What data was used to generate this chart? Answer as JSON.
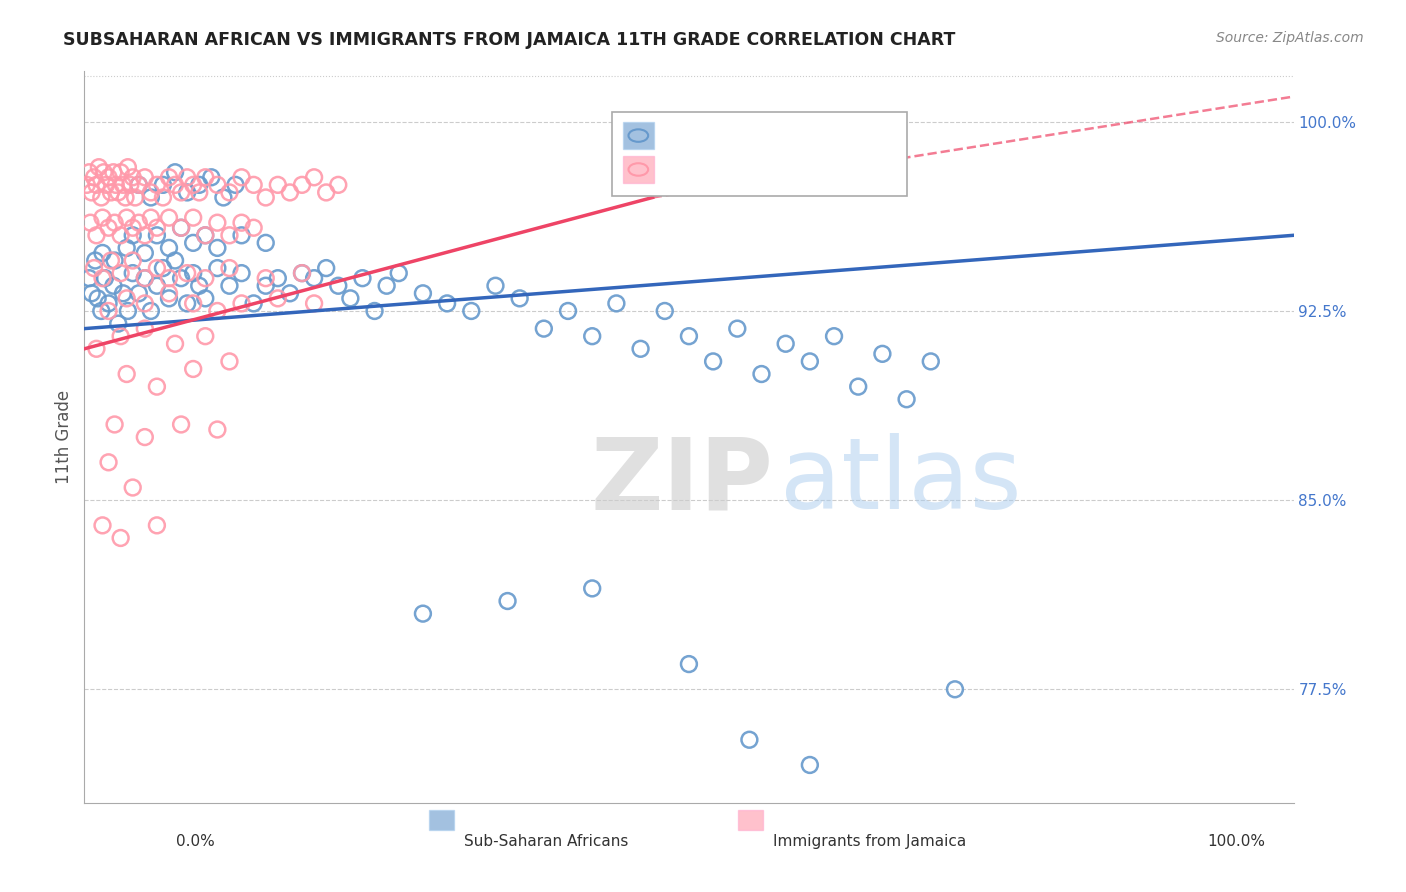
{
  "title": "SUBSAHARAN AFRICAN VS IMMIGRANTS FROM JAMAICA 11TH GRADE CORRELATION CHART",
  "source": "Source: ZipAtlas.com",
  "ylabel": "11th Grade",
  "xlim": [
    0.0,
    100.0
  ],
  "ylim": [
    73.0,
    102.0
  ],
  "yticks": [
    77.5,
    85.0,
    92.5,
    100.0
  ],
  "ytick_labels": [
    "77.5%",
    "85.0%",
    "92.5%",
    "100.0%"
  ],
  "blue_color": "#6699CC",
  "pink_color": "#FF99AA",
  "blue_line_color": "#3366BB",
  "pink_line_color": "#EE4466",
  "watermark_zip": "ZIP",
  "watermark_atlas": "atlas",
  "blue_scatter": [
    [
      0.4,
      93.8
    ],
    [
      0.6,
      93.2
    ],
    [
      0.9,
      94.5
    ],
    [
      1.1,
      93.0
    ],
    [
      1.4,
      92.5
    ],
    [
      1.7,
      93.8
    ],
    [
      2.0,
      92.8
    ],
    [
      2.4,
      93.5
    ],
    [
      2.8,
      92.0
    ],
    [
      3.2,
      93.2
    ],
    [
      3.6,
      92.5
    ],
    [
      4.0,
      94.0
    ],
    [
      4.5,
      93.2
    ],
    [
      5.0,
      93.8
    ],
    [
      5.5,
      92.5
    ],
    [
      6.0,
      93.5
    ],
    [
      6.5,
      94.2
    ],
    [
      7.0,
      93.0
    ],
    [
      7.5,
      94.5
    ],
    [
      8.0,
      93.8
    ],
    [
      8.5,
      92.8
    ],
    [
      9.0,
      94.0
    ],
    [
      9.5,
      93.5
    ],
    [
      10.0,
      93.0
    ],
    [
      11.0,
      94.2
    ],
    [
      12.0,
      93.5
    ],
    [
      13.0,
      94.0
    ],
    [
      14.0,
      92.8
    ],
    [
      15.0,
      93.5
    ],
    [
      16.0,
      93.8
    ],
    [
      17.0,
      93.2
    ],
    [
      18.0,
      94.0
    ],
    [
      19.0,
      93.8
    ],
    [
      20.0,
      94.2
    ],
    [
      21.0,
      93.5
    ],
    [
      22.0,
      93.0
    ],
    [
      23.0,
      93.8
    ],
    [
      24.0,
      92.5
    ],
    [
      25.0,
      93.5
    ],
    [
      26.0,
      94.0
    ],
    [
      28.0,
      93.2
    ],
    [
      30.0,
      92.8
    ],
    [
      32.0,
      92.5
    ],
    [
      34.0,
      93.5
    ],
    [
      36.0,
      93.0
    ],
    [
      38.0,
      91.8
    ],
    [
      40.0,
      92.5
    ],
    [
      42.0,
      91.5
    ],
    [
      44.0,
      92.8
    ],
    [
      46.0,
      91.0
    ],
    [
      48.0,
      92.5
    ],
    [
      50.0,
      91.5
    ],
    [
      52.0,
      90.5
    ],
    [
      54.0,
      91.8
    ],
    [
      56.0,
      90.0
    ],
    [
      58.0,
      91.2
    ],
    [
      60.0,
      90.5
    ],
    [
      62.0,
      91.5
    ],
    [
      64.0,
      89.5
    ],
    [
      66.0,
      90.8
    ],
    [
      68.0,
      89.0
    ],
    [
      70.0,
      90.5
    ],
    [
      4.5,
      97.5
    ],
    [
      5.5,
      97.0
    ],
    [
      6.5,
      97.5
    ],
    [
      7.5,
      98.0
    ],
    [
      8.5,
      97.2
    ],
    [
      9.5,
      97.5
    ],
    [
      10.5,
      97.8
    ],
    [
      11.5,
      97.0
    ],
    [
      12.5,
      97.5
    ],
    [
      1.5,
      94.8
    ],
    [
      2.5,
      94.5
    ],
    [
      3.5,
      95.0
    ],
    [
      4.0,
      95.5
    ],
    [
      5.0,
      94.8
    ],
    [
      6.0,
      95.5
    ],
    [
      7.0,
      95.0
    ],
    [
      8.0,
      95.8
    ],
    [
      9.0,
      95.2
    ],
    [
      10.0,
      95.5
    ],
    [
      11.0,
      95.0
    ],
    [
      13.0,
      95.5
    ],
    [
      15.0,
      95.2
    ],
    [
      72.0,
      77.5
    ],
    [
      55.0,
      75.5
    ],
    [
      60.0,
      74.5
    ],
    [
      28.0,
      80.5
    ],
    [
      35.0,
      81.0
    ],
    [
      42.0,
      81.5
    ],
    [
      50.0,
      78.5
    ]
  ],
  "pink_scatter": [
    [
      0.2,
      97.5
    ],
    [
      0.4,
      98.0
    ],
    [
      0.6,
      97.2
    ],
    [
      0.8,
      97.8
    ],
    [
      1.0,
      97.5
    ],
    [
      1.2,
      98.2
    ],
    [
      1.4,
      97.0
    ],
    [
      1.6,
      98.0
    ],
    [
      1.8,
      97.5
    ],
    [
      2.0,
      97.8
    ],
    [
      2.2,
      97.2
    ],
    [
      2.4,
      98.0
    ],
    [
      2.6,
      97.5
    ],
    [
      2.8,
      97.2
    ],
    [
      3.0,
      98.0
    ],
    [
      3.2,
      97.5
    ],
    [
      3.4,
      97.0
    ],
    [
      3.6,
      98.2
    ],
    [
      3.8,
      97.5
    ],
    [
      4.0,
      97.8
    ],
    [
      4.2,
      97.0
    ],
    [
      4.5,
      97.5
    ],
    [
      5.0,
      97.8
    ],
    [
      5.5,
      97.2
    ],
    [
      6.0,
      97.5
    ],
    [
      6.5,
      97.0
    ],
    [
      7.0,
      97.8
    ],
    [
      7.5,
      97.5
    ],
    [
      8.0,
      97.2
    ],
    [
      8.5,
      97.8
    ],
    [
      9.0,
      97.5
    ],
    [
      9.5,
      97.2
    ],
    [
      10.0,
      97.8
    ],
    [
      11.0,
      97.5
    ],
    [
      12.0,
      97.2
    ],
    [
      13.0,
      97.8
    ],
    [
      14.0,
      97.5
    ],
    [
      15.0,
      97.0
    ],
    [
      16.0,
      97.5
    ],
    [
      17.0,
      97.2
    ],
    [
      18.0,
      97.5
    ],
    [
      19.0,
      97.8
    ],
    [
      20.0,
      97.2
    ],
    [
      21.0,
      97.5
    ],
    [
      0.5,
      96.0
    ],
    [
      1.0,
      95.5
    ],
    [
      1.5,
      96.2
    ],
    [
      2.0,
      95.8
    ],
    [
      2.5,
      96.0
    ],
    [
      3.0,
      95.5
    ],
    [
      3.5,
      96.2
    ],
    [
      4.0,
      95.8
    ],
    [
      4.5,
      96.0
    ],
    [
      5.0,
      95.5
    ],
    [
      5.5,
      96.2
    ],
    [
      6.0,
      95.8
    ],
    [
      7.0,
      96.2
    ],
    [
      8.0,
      95.8
    ],
    [
      9.0,
      96.2
    ],
    [
      10.0,
      95.5
    ],
    [
      11.0,
      96.0
    ],
    [
      12.0,
      95.5
    ],
    [
      13.0,
      96.0
    ],
    [
      14.0,
      95.8
    ],
    [
      0.8,
      94.2
    ],
    [
      1.5,
      93.8
    ],
    [
      2.2,
      94.5
    ],
    [
      3.0,
      94.0
    ],
    [
      4.0,
      94.5
    ],
    [
      5.0,
      93.8
    ],
    [
      6.0,
      94.2
    ],
    [
      7.0,
      93.8
    ],
    [
      8.5,
      94.0
    ],
    [
      10.0,
      93.8
    ],
    [
      12.0,
      94.2
    ],
    [
      15.0,
      93.8
    ],
    [
      18.0,
      94.0
    ],
    [
      2.0,
      92.5
    ],
    [
      3.5,
      93.0
    ],
    [
      5.0,
      92.8
    ],
    [
      7.0,
      93.2
    ],
    [
      9.0,
      92.8
    ],
    [
      11.0,
      92.5
    ],
    [
      13.0,
      92.8
    ],
    [
      16.0,
      93.0
    ],
    [
      19.0,
      92.8
    ],
    [
      1.0,
      91.0
    ],
    [
      3.0,
      91.5
    ],
    [
      5.0,
      91.8
    ],
    [
      7.5,
      91.2
    ],
    [
      10.0,
      91.5
    ],
    [
      3.5,
      90.0
    ],
    [
      6.0,
      89.5
    ],
    [
      9.0,
      90.2
    ],
    [
      12.0,
      90.5
    ],
    [
      2.5,
      88.0
    ],
    [
      5.0,
      87.5
    ],
    [
      8.0,
      88.0
    ],
    [
      11.0,
      87.8
    ],
    [
      2.0,
      86.5
    ],
    [
      4.0,
      85.5
    ],
    [
      1.5,
      84.0
    ],
    [
      3.0,
      83.5
    ],
    [
      6.0,
      84.0
    ]
  ],
  "blue_trend": {
    "x_start": 0,
    "y_start": 91.8,
    "x_end": 100,
    "y_end": 95.5
  },
  "pink_trend_solid": {
    "x_start": 0,
    "y_start": 91.0,
    "x_end": 47,
    "y_end": 97.0
  },
  "pink_trend_dashed": {
    "x_start": 47,
    "y_start": 97.0,
    "x_end": 100,
    "y_end": 101.0
  }
}
